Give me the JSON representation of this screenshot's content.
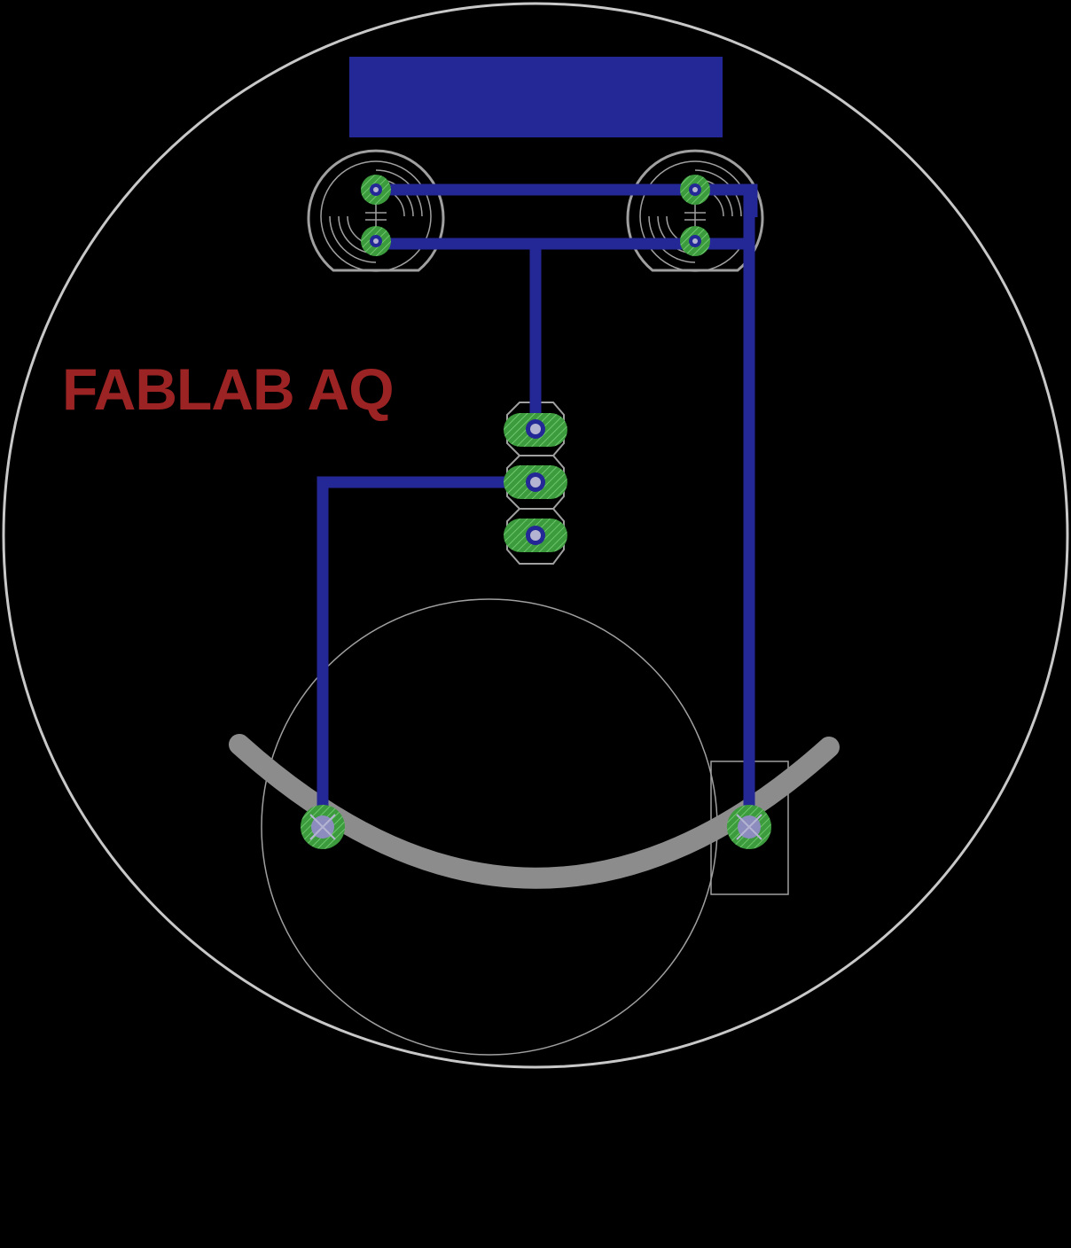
{
  "board": {
    "label": "FABLAB AQ",
    "colors": {
      "background": "#000000",
      "outline": "#c8c8c8",
      "silkscreen": "#a0a0a0",
      "trace": "#232896",
      "pad": "#3c9b3c",
      "pad_ring": "#7fd67f",
      "drill": "#b4b4d2",
      "arc": "#8c8c8c",
      "label": "#9b2323"
    },
    "components": [
      {
        "name": "copper-pour-rect"
      },
      {
        "name": "led-left"
      },
      {
        "name": "led-right"
      },
      {
        "name": "header-3pin"
      },
      {
        "name": "coin-cell-holder"
      }
    ]
  }
}
